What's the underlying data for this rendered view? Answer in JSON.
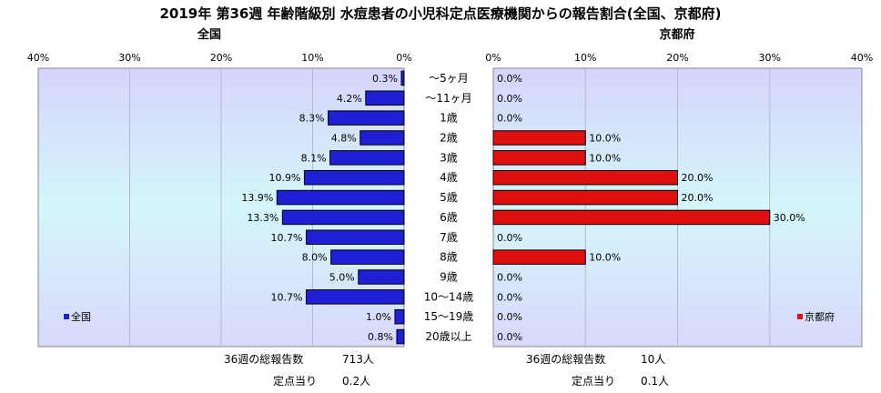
{
  "chart_data": {
    "type": "bar",
    "title": "2019年 第36週 年齢階級別 水痘患者の小児科定点医療機関からの報告割合(全国、京都府)",
    "categories": [
      "～5ヶ月",
      "～11ヶ月",
      "1歳",
      "2歳",
      "3歳",
      "4歳",
      "5歳",
      "6歳",
      "7歳",
      "8歳",
      "9歳",
      "10～14歳",
      "15～19歳",
      "20歳以上"
    ],
    "panels": [
      {
        "name": "全国",
        "legend": "全国",
        "legend_position": "bottom-left",
        "direction": "left",
        "color": "#1f1fd6",
        "ticks": [
          40,
          30,
          20,
          10,
          0
        ],
        "tick_labels": [
          "40%",
          "30%",
          "20%",
          "10%",
          "0%"
        ],
        "xlim": [
          0,
          40
        ],
        "values": [
          0.3,
          4.2,
          8.3,
          4.8,
          8.1,
          10.9,
          13.9,
          13.3,
          10.7,
          8.0,
          5.0,
          10.7,
          1.0,
          0.8
        ],
        "value_labels": [
          "0.3%",
          "4.2%",
          "8.3%",
          "4.8%",
          "8.1%",
          "10.9%",
          "13.9%",
          "13.3%",
          "10.7%",
          "8.0%",
          "5.0%",
          "10.7%",
          "1.0%",
          "0.8%"
        ]
      },
      {
        "name": "京都府",
        "legend": "京都府",
        "legend_position": "bottom-right",
        "direction": "right",
        "color": "#e01010",
        "ticks": [
          0,
          10,
          20,
          30,
          40
        ],
        "tick_labels": [
          "0%",
          "10%",
          "20%",
          "30%",
          "40%"
        ],
        "xlim": [
          0,
          40
        ],
        "values": [
          0,
          0,
          0,
          10,
          10,
          20,
          20,
          30,
          0,
          10,
          0,
          0,
          0,
          0
        ],
        "value_labels": [
          "0.0%",
          "0.0%",
          "0.0%",
          "10.0%",
          "10.0%",
          "20.0%",
          "20.0%",
          "30.0%",
          "0.0%",
          "10.0%",
          "0.0%",
          "0.0%",
          "0.0%",
          "0.0%"
        ]
      }
    ],
    "grid": true
  },
  "stats": {
    "national": {
      "total_label": "36週の総報告数",
      "total_value": "713人",
      "per_label": "定点当り",
      "per_value": "0.2人"
    },
    "kyoto": {
      "total_label": "36週の総報告数",
      "total_value": "10人",
      "per_label": "定点当り",
      "per_value": "0.1人"
    }
  }
}
